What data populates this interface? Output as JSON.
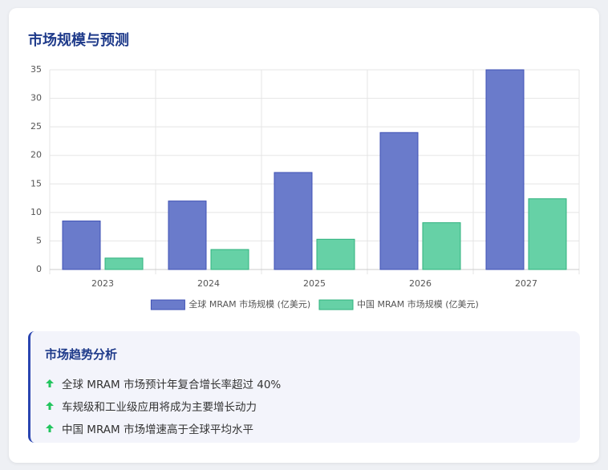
{
  "chart_data": {
    "type": "bar",
    "title": "市场规模与预测",
    "categories": [
      "2023",
      "2024",
      "2025",
      "2026",
      "2027"
    ],
    "series": [
      {
        "name": "全球 MRAM 市场规模 (亿美元)",
        "color": "#6a7bcb",
        "values": [
          8.5,
          12,
          17,
          24,
          35
        ]
      },
      {
        "name": "中国 MRAM 市场规模 (亿美元)",
        "color": "#66d1a6",
        "values": [
          2,
          3.5,
          5.3,
          8.2,
          12.4
        ]
      }
    ],
    "ylim": [
      0,
      35
    ],
    "yticks": [
      0,
      5,
      10,
      15,
      20,
      25,
      30,
      35
    ],
    "grid": true,
    "legend": "bottom"
  },
  "analysis": {
    "title": "市场趋势分析",
    "items": [
      "全球 MRAM 市场预计年复合增长率超过 40%",
      "车规级和工业级应用将成为主要增长动力",
      "中国 MRAM 市场增速高于全球平均水平"
    ]
  }
}
